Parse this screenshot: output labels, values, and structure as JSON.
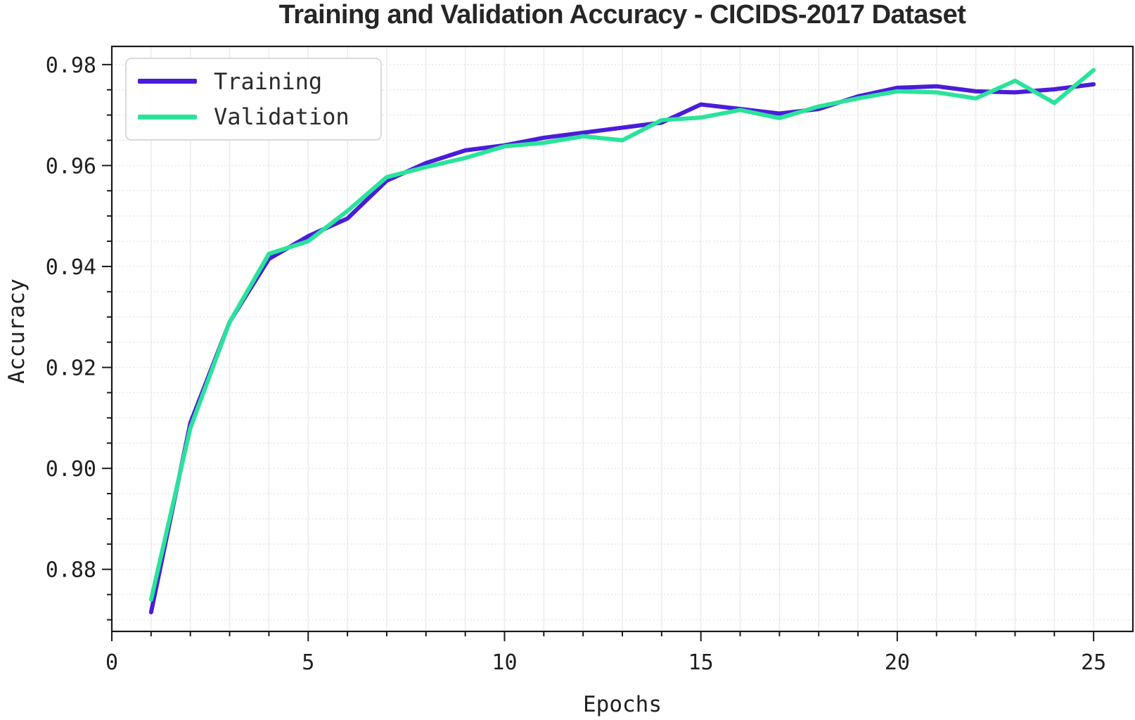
{
  "chart_data": {
    "type": "line",
    "title": "Training and Validation Accuracy - CICIDS-2017 Dataset",
    "xlabel": "Epochs",
    "ylabel": "Accuracy",
    "x": [
      1,
      2,
      3,
      4,
      5,
      6,
      7,
      8,
      9,
      10,
      11,
      12,
      13,
      14,
      15,
      16,
      17,
      18,
      19,
      20,
      21,
      22,
      23,
      24,
      25
    ],
    "series": [
      {
        "name": "Training",
        "color": "#4b1cd8",
        "values": [
          0.8715,
          0.909,
          0.929,
          0.9415,
          0.946,
          0.9495,
          0.957,
          0.9605,
          0.963,
          0.964,
          0.9655,
          0.9665,
          0.9675,
          0.9685,
          0.9721,
          0.9712,
          0.9703,
          0.9712,
          0.9737,
          0.9754,
          0.9757,
          0.9747,
          0.9745,
          0.9751,
          0.9761
        ]
      },
      {
        "name": "Validation",
        "color": "#2ae39b",
        "values": [
          0.874,
          0.908,
          0.929,
          0.9425,
          0.945,
          0.951,
          0.9577,
          0.9597,
          0.9615,
          0.9638,
          0.9645,
          0.9658,
          0.965,
          0.969,
          0.9695,
          0.971,
          0.9694,
          0.9717,
          0.9733,
          0.9747,
          0.9745,
          0.9733,
          0.9768,
          0.9724,
          0.9789
        ]
      }
    ],
    "xlim": [
      0,
      26
    ],
    "ylim": [
      0.8677,
      0.9836
    ],
    "x_ticks": {
      "values": [
        0,
        5,
        10,
        15,
        20,
        25
      ],
      "labels": [
        "0",
        "5",
        "10",
        "15",
        "20",
        "25"
      ],
      "minor_step": 1
    },
    "y_ticks": {
      "values": [
        0.88,
        0.9,
        0.92,
        0.94,
        0.96,
        0.98
      ],
      "labels": [
        "0.88",
        "0.90",
        "0.92",
        "0.94",
        "0.96",
        "0.98"
      ],
      "minor_step": 0.005
    },
    "grid": true,
    "legend": {
      "position": "upper left",
      "entries": [
        "Training",
        "Validation"
      ]
    },
    "style": {
      "spine_color": "#1a1a1a",
      "grid_color_vertical": "#ebebeb",
      "grid_color_horizontal": "#e7e7e7",
      "background": "#ffffff"
    }
  }
}
